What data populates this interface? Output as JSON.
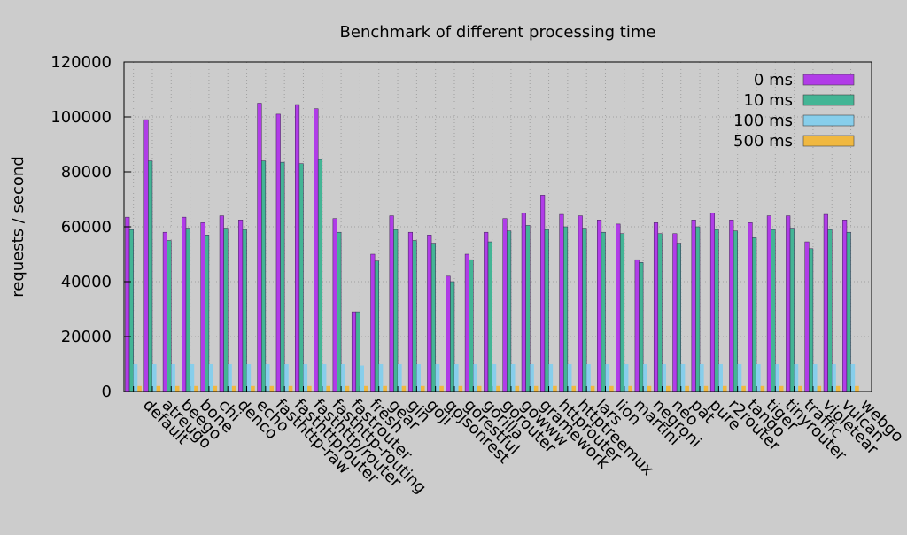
{
  "chart_data": {
    "type": "bar",
    "title": "Benchmark of different processing time",
    "xlabel": "",
    "ylabel": "requests / second",
    "ylim": [
      0,
      120000
    ],
    "yticks": [
      "0",
      "20000",
      "40000",
      "60000",
      "80000",
      "100000",
      "120000"
    ],
    "grid": true,
    "legend_position": "top-right",
    "categories": [
      "default",
      "atreugo",
      "beego",
      "bone",
      "chi",
      "denco",
      "echo",
      "fasthttp-raw",
      "fasthttprouter",
      "fasthttp/router",
      "fasthttp-routing",
      "fastrouter",
      "fresh",
      "gear",
      "gin",
      "goji",
      "gojsonrest",
      "gorestful",
      "gorilla",
      "gorouter",
      "gowww",
      "gramework",
      "httprouter",
      "httptreemux",
      "lars",
      "lion",
      "martini",
      "negroni",
      "neo",
      "pat",
      "pure",
      "r2router",
      "tango",
      "tiger",
      "tinyrouter",
      "traffic",
      "violetear",
      "vulcan",
      "webgo"
    ],
    "series": [
      {
        "name": "0 ms",
        "color": "#b13ce8",
        "values": [
          63500,
          99000,
          58000,
          63500,
          61500,
          64000,
          62500,
          105000,
          101000,
          104500,
          103000,
          63000,
          29000,
          50000,
          64000,
          58000,
          57000,
          42000,
          50000,
          58000,
          63000,
          65000,
          71500,
          64500,
          64000,
          62500,
          61000,
          48000,
          61500,
          57500,
          62500,
          65000,
          62500,
          61500,
          64000,
          64000,
          54500,
          64500,
          62500
        ]
      },
      {
        "name": "10 ms",
        "color": "#43b595",
        "values": [
          59000,
          84000,
          55000,
          59500,
          57000,
          59500,
          59000,
          84000,
          83500,
          83000,
          84500,
          58000,
          29000,
          47500,
          59000,
          55000,
          54000,
          40000,
          48000,
          54500,
          58500,
          60500,
          59000,
          60000,
          59500,
          58000,
          57500,
          47000,
          57500,
          54000,
          60000,
          59000,
          58500,
          56000,
          59000,
          59500,
          52000,
          59000,
          58000
        ]
      },
      {
        "name": "100 ms",
        "color": "#87ceeb",
        "values": [
          10000,
          10000,
          10000,
          10000,
          10000,
          10000,
          10000,
          10000,
          10000,
          10000,
          10000,
          10000,
          9500,
          10000,
          10000,
          10000,
          10000,
          10000,
          10000,
          10000,
          10000,
          10000,
          10000,
          10000,
          10000,
          10000,
          10000,
          10000,
          10000,
          10000,
          10000,
          10000,
          10000,
          10000,
          10000,
          10000,
          10000,
          10000,
          10000
        ]
      },
      {
        "name": "500 ms",
        "color": "#f0b840",
        "values": [
          2000,
          2000,
          2000,
          2000,
          2000,
          2000,
          2000,
          2000,
          2000,
          2000,
          2000,
          2000,
          2000,
          2000,
          2000,
          2000,
          2000,
          2000,
          2000,
          2000,
          2000,
          2000,
          2000,
          2000,
          2000,
          2000,
          2000,
          2000,
          2000,
          2000,
          2000,
          2000,
          2000,
          2000,
          2000,
          2000,
          2000,
          2000,
          2000
        ]
      }
    ]
  }
}
